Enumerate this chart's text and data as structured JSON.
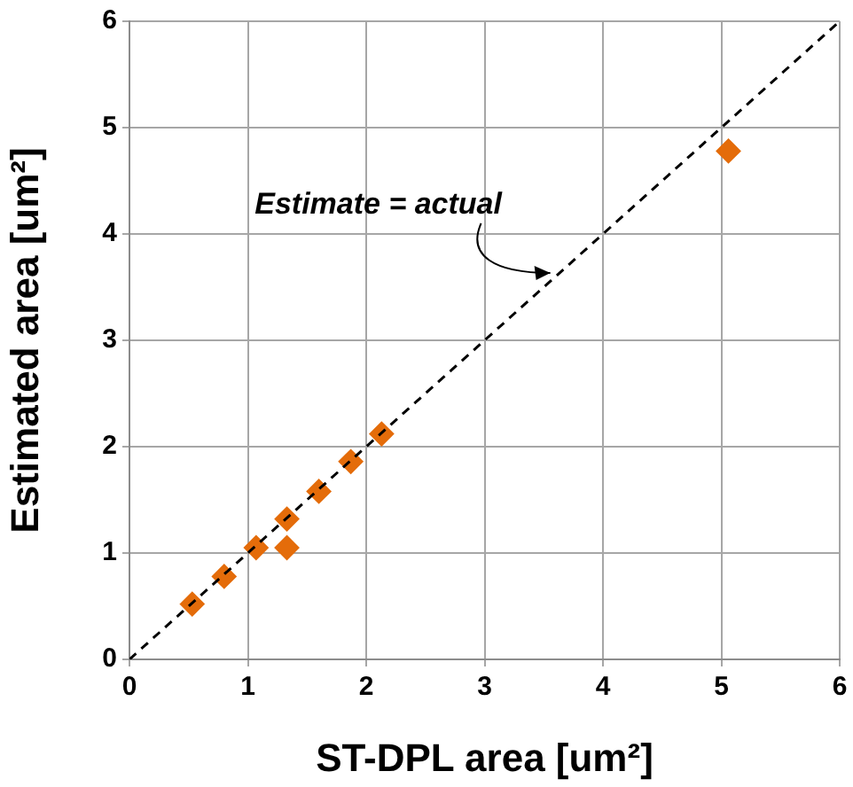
{
  "chart_data": {
    "type": "scatter",
    "xlabel": "ST-DPL area [um²]",
    "ylabel": "Estimated area [um²]",
    "xlim": [
      0,
      6
    ],
    "ylim": [
      0,
      6
    ],
    "xticks": [
      0,
      1,
      2,
      3,
      4,
      5,
      6
    ],
    "yticks": [
      0,
      1,
      2,
      3,
      4,
      5,
      6
    ],
    "grid": true,
    "legend": false,
    "marker": "diamond",
    "series": [
      {
        "type": "line",
        "color": "#000000",
        "line_style": "dashed",
        "marker": "none",
        "x": [
          0,
          6
        ],
        "values": [
          0,
          6
        ]
      },
      {
        "type": "scatter",
        "color": "#e46c0a",
        "x": [
          0.53,
          0.8,
          1.07,
          1.33,
          1.33,
          1.6,
          1.87,
          2.13,
          5.06
        ],
        "values": [
          0.52,
          0.78,
          1.05,
          1.32,
          1.05,
          1.58,
          1.86,
          2.12,
          4.78
        ]
      }
    ],
    "annotations": [
      {
        "text": "Estimate = actual",
        "x": 3.6,
        "y": 3.6
      }
    ]
  }
}
